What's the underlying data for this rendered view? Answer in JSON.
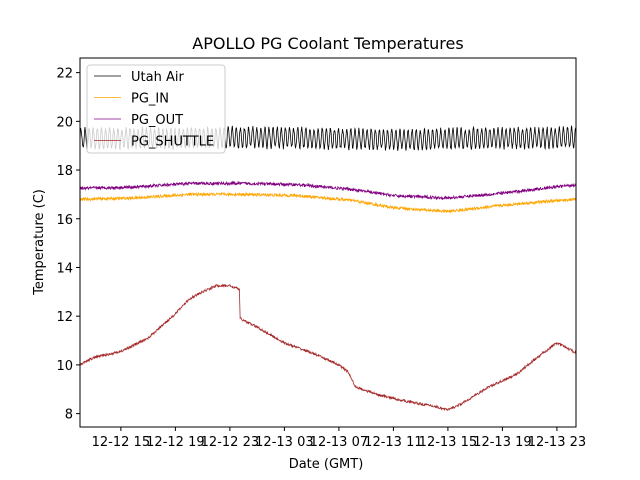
{
  "chart_data": {
    "type": "line",
    "title": "APOLLO PG Coolant Temperatures",
    "xlabel": "Date (GMT)",
    "ylabel": "Temperature (C)",
    "ylim": [
      7.45,
      22.6
    ],
    "xlim_hours": [
      0,
      36.4
    ],
    "x_origin_label": "12-12 12:00 (approx)",
    "yticks": [
      8,
      10,
      12,
      14,
      16,
      18,
      20,
      22
    ],
    "xticks": [
      {
        "hour": 3,
        "label": "12-12 15"
      },
      {
        "hour": 7,
        "label": "12-12 19"
      },
      {
        "hour": 11,
        "label": "12-12 23"
      },
      {
        "hour": 15,
        "label": "12-13 03"
      },
      {
        "hour": 19,
        "label": "12-13 07"
      },
      {
        "hour": 23,
        "label": "12-13 11"
      },
      {
        "hour": 27,
        "label": "12-13 15"
      },
      {
        "hour": 31,
        "label": "12-13 19"
      },
      {
        "hour": 35,
        "label": "12-13 23"
      }
    ],
    "grid": false,
    "legend_position": "upper-left",
    "series": [
      {
        "name": "Utah Air",
        "color": "#000000",
        "oscillation_amplitude": 0.4,
        "oscillation_period_hours": 0.3,
        "noise": 0.08,
        "points": [
          [
            0,
            19.3
          ],
          [
            6,
            19.3
          ],
          [
            12,
            19.35
          ],
          [
            18,
            19.3
          ],
          [
            24,
            19.25
          ],
          [
            30,
            19.3
          ],
          [
            36.4,
            19.35
          ]
        ]
      },
      {
        "name": "PG_IN",
        "color": "#ffa500",
        "noise": 0.06,
        "points": [
          [
            0,
            16.8
          ],
          [
            4,
            16.85
          ],
          [
            8,
            17.0
          ],
          [
            12,
            17.0
          ],
          [
            16,
            16.95
          ],
          [
            20,
            16.75
          ],
          [
            23,
            16.45
          ],
          [
            27,
            16.3
          ],
          [
            31,
            16.55
          ],
          [
            34,
            16.7
          ],
          [
            36.4,
            16.8
          ]
        ]
      },
      {
        "name": "PG_OUT",
        "color": "#800080",
        "noise": 0.06,
        "points": [
          [
            0,
            17.25
          ],
          [
            4,
            17.3
          ],
          [
            8,
            17.45
          ],
          [
            12,
            17.45
          ],
          [
            16,
            17.4
          ],
          [
            20,
            17.2
          ],
          [
            23,
            16.95
          ],
          [
            27,
            16.85
          ],
          [
            31,
            17.05
          ],
          [
            34,
            17.25
          ],
          [
            36.4,
            17.4
          ]
        ]
      },
      {
        "name": "PG_SHUTTLE",
        "color": "#a52a2a",
        "noise": 0.05,
        "points": [
          [
            0,
            10.0
          ],
          [
            1,
            10.3
          ],
          [
            3,
            10.55
          ],
          [
            5,
            11.1
          ],
          [
            7,
            12.1
          ],
          [
            8,
            12.7
          ],
          [
            9,
            13.0
          ],
          [
            10,
            13.25
          ],
          [
            11,
            13.25
          ],
          [
            11.7,
            13.1
          ],
          [
            11.75,
            11.9
          ],
          [
            13,
            11.55
          ],
          [
            15,
            10.9
          ],
          [
            17,
            10.5
          ],
          [
            19,
            10.0
          ],
          [
            19.7,
            9.7
          ],
          [
            20.2,
            9.1
          ],
          [
            22,
            8.75
          ],
          [
            24,
            8.5
          ],
          [
            26,
            8.3
          ],
          [
            27,
            8.15
          ],
          [
            28,
            8.4
          ],
          [
            30,
            9.1
          ],
          [
            32,
            9.6
          ],
          [
            34,
            10.5
          ],
          [
            35,
            10.9
          ],
          [
            36.4,
            10.5
          ]
        ]
      }
    ]
  }
}
